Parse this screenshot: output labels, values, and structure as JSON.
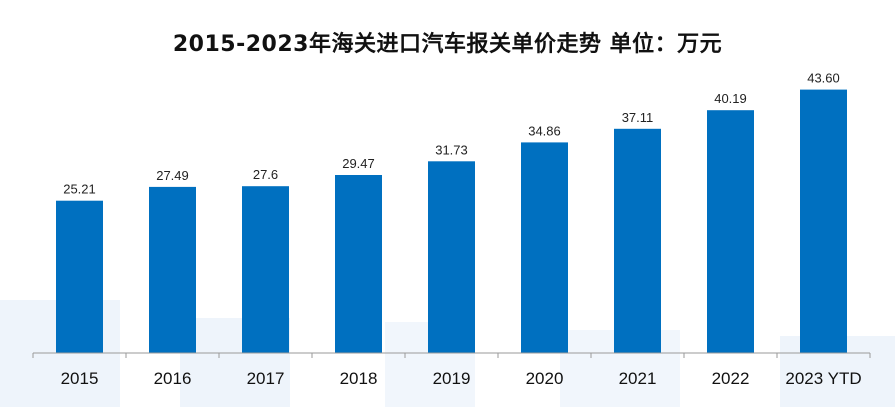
{
  "title": "2015-2023年海关进口汽车报关单价走势 单位：万元",
  "colors": {
    "bar": "#0070C0",
    "axis": "#9a9a9a",
    "background_deco": "#eef4fb"
  },
  "chart_data": {
    "type": "bar",
    "title": "2015-2023年海关进口汽车报关单价走势 单位：万元",
    "xlabel": "",
    "ylabel": "",
    "unit": "万元",
    "categories": [
      "2015",
      "2016",
      "2017",
      "2018",
      "2019",
      "2020",
      "2021",
      "2022",
      "2023 YTD"
    ],
    "values": [
      25.21,
      27.49,
      27.6,
      29.47,
      31.73,
      34.86,
      37.11,
      40.19,
      43.6
    ],
    "value_labels": [
      "25.21",
      "27.49",
      "27.6",
      "29.47",
      "31.73",
      "34.86",
      "37.11",
      "40.19",
      "43.60"
    ],
    "ylim": [
      0,
      48
    ],
    "grid": false,
    "legend": "none"
  }
}
